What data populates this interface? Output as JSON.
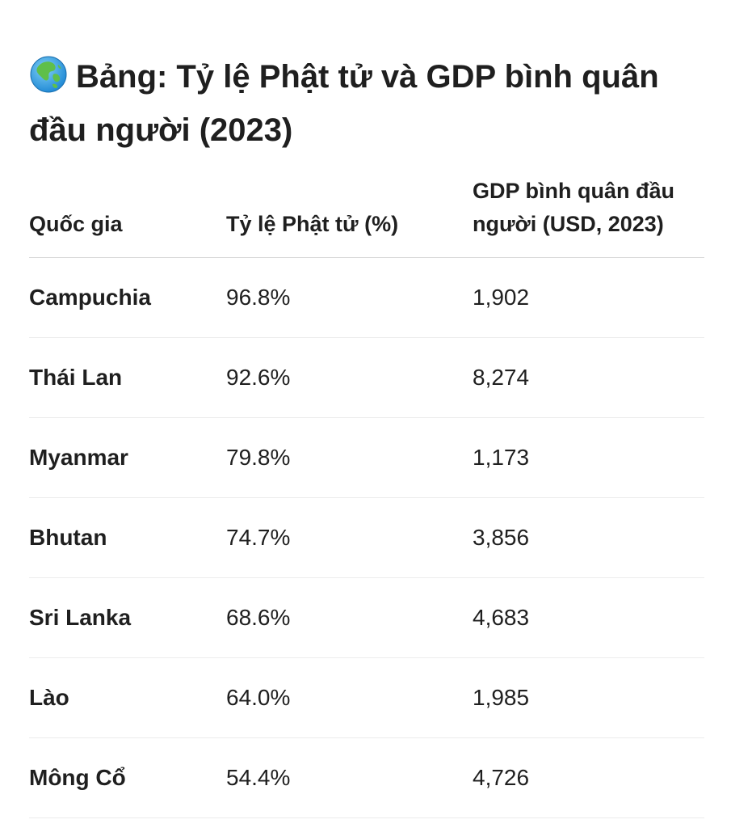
{
  "title": {
    "icon": "globe-asia-icon",
    "text": "Bảng: Tỷ lệ Phật tử và GDP bình quân đầu người (2023)"
  },
  "table": {
    "headers": [
      "Quốc gia",
      "Tỷ lệ Phật tử (%)",
      "GDP bình quân đầu người (USD, 2023)"
    ],
    "rows": [
      [
        "Campuchia",
        "96.8%",
        "1,902"
      ],
      [
        "Thái Lan",
        "92.6%",
        "8,274"
      ],
      [
        "Myanmar",
        "79.8%",
        "1,173"
      ],
      [
        "Bhutan",
        "74.7%",
        "3,856"
      ],
      [
        "Sri Lanka",
        "68.6%",
        "4,683"
      ],
      [
        "Lào",
        "64.0%",
        "1,985"
      ],
      [
        "Mông Cổ",
        "54.4%",
        "4,726"
      ]
    ]
  }
}
